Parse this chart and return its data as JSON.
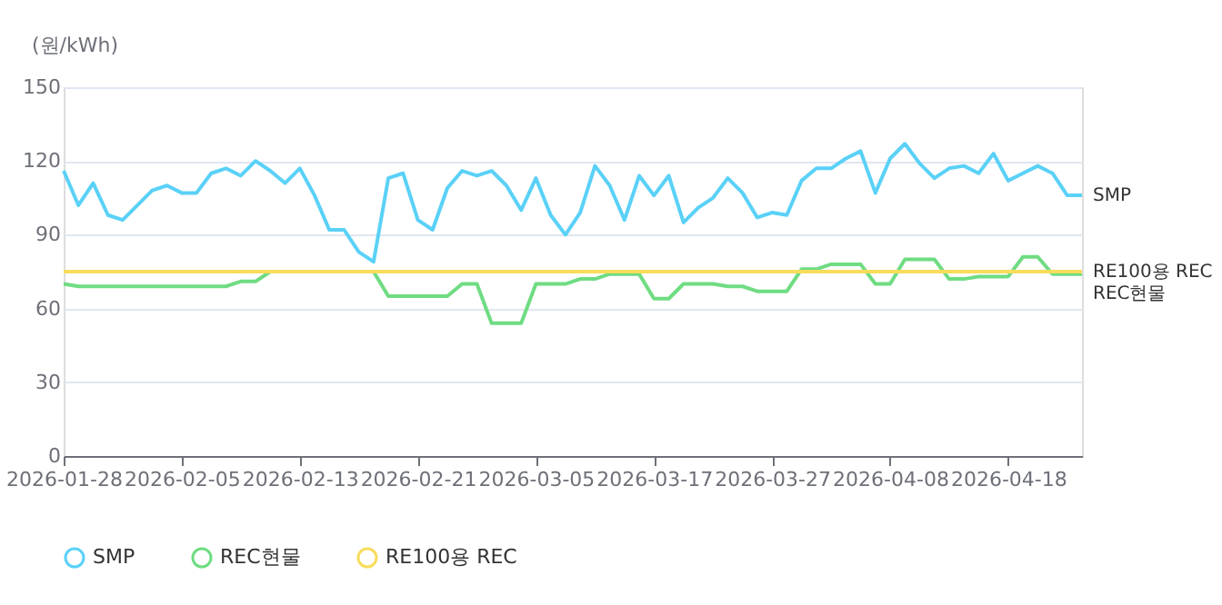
{
  "chart_data": {
    "type": "line",
    "ylabel": "(원/kWh)",
    "categories": [
      "2026-01-28",
      null,
      null,
      null,
      null,
      null,
      null,
      null,
      "2026-02-05",
      null,
      null,
      null,
      null,
      null,
      null,
      null,
      "2026-02-13",
      null,
      null,
      null,
      null,
      null,
      null,
      null,
      "2026-02-21",
      null,
      null,
      null,
      null,
      null,
      null,
      null,
      "2026-03-05",
      null,
      null,
      null,
      null,
      null,
      null,
      null,
      "2026-03-17",
      null,
      null,
      null,
      null,
      null,
      null,
      null,
      "2026-03-27",
      null,
      null,
      null,
      null,
      null,
      null,
      null,
      "2026-04-08",
      null,
      null,
      null,
      null,
      null,
      null,
      null,
      "2026-04-18",
      null,
      null,
      null,
      null,
      null
    ],
    "series": [
      {
        "name": "SMP",
        "color": "#5ad1f7",
        "values": [
          116,
          102,
          111,
          98,
          96,
          102,
          108,
          110,
          107,
          107,
          115,
          117,
          114,
          120,
          116,
          111,
          117,
          106,
          92,
          92,
          83,
          79,
          113,
          115,
          96,
          92,
          109,
          116,
          114,
          116,
          110,
          100,
          113,
          98,
          90,
          99,
          118,
          110,
          96,
          114,
          106,
          114,
          95,
          101,
          105,
          113,
          107,
          97,
          99,
          98,
          112,
          117,
          117,
          121,
          124,
          107,
          121,
          127,
          119,
          113,
          117,
          118,
          115,
          123,
          112,
          115,
          118,
          115,
          106,
          106
        ]
      },
      {
        "name": "REC현물",
        "color": "#6fdc82",
        "values": [
          70,
          69,
          69,
          69,
          69,
          69,
          69,
          69,
          69,
          69,
          69,
          69,
          71,
          71,
          75,
          null,
          null,
          null,
          null,
          null,
          null,
          75,
          65,
          65,
          65,
          65,
          65,
          70,
          70,
          54,
          54,
          54,
          70,
          70,
          70,
          72,
          72,
          74,
          74,
          74,
          64,
          64,
          70,
          70,
          70,
          69,
          69,
          67,
          67,
          67,
          76,
          76,
          78,
          78,
          78,
          70,
          70,
          80,
          80,
          80,
          72,
          72,
          73,
          73,
          73,
          81,
          81,
          74,
          74,
          74
        ]
      },
      {
        "name": "RE100용 REC",
        "color": "#f8dc5c",
        "values": [
          75,
          75,
          75,
          75,
          75,
          75,
          75,
          75,
          75,
          75,
          75,
          75,
          75,
          75,
          75,
          75,
          75,
          75,
          75,
          75,
          75,
          75,
          75,
          75,
          75,
          75,
          75,
          75,
          75,
          75,
          75,
          75,
          75,
          75,
          75,
          75,
          75,
          75,
          75,
          75,
          75,
          75,
          75,
          75,
          75,
          75,
          75,
          75,
          75,
          75,
          75,
          75,
          75,
          75,
          75,
          75,
          75,
          75,
          75,
          75,
          75,
          75,
          75,
          75,
          75,
          75,
          75,
          75,
          75,
          75
        ]
      }
    ],
    "ylim": [
      0,
      150
    ],
    "yticks": [
      0,
      30,
      60,
      90,
      120,
      150
    ],
    "grid": "y",
    "legend": "bottom",
    "marker": "none",
    "line_style": "solid"
  }
}
